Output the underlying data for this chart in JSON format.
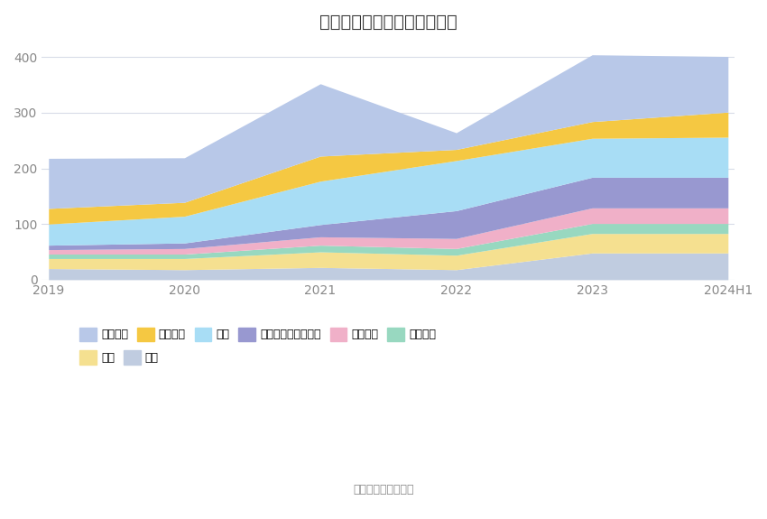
{
  "title": "历年主要资产堆积图（亿元）",
  "years": [
    "2019",
    "2020",
    "2021",
    "2022",
    "2023",
    "2024H1"
  ],
  "stack_order": [
    "其它",
    "商誉",
    "无形资产",
    "固定资产",
    "其他非流动金融资产",
    "存货",
    "应收账款",
    "货币资金"
  ],
  "legend_order": [
    "货币资金",
    "应收账款",
    "存货",
    "其他非流动金融资产",
    "固定资产",
    "无形资产",
    "商誉",
    "其它"
  ],
  "values": {
    "货币资金": [
      90,
      80,
      130,
      30,
      120,
      100
    ],
    "应收账款": [
      28,
      25,
      45,
      20,
      30,
      45
    ],
    "存货": [
      38,
      48,
      78,
      90,
      70,
      72
    ],
    "其他非流动金融资产": [
      8,
      10,
      22,
      50,
      55,
      55
    ],
    "固定资产": [
      8,
      10,
      15,
      18,
      28,
      28
    ],
    "无形资产": [
      8,
      8,
      12,
      12,
      18,
      18
    ],
    "商誉": [
      18,
      20,
      28,
      26,
      35,
      35
    ],
    "其它": [
      20,
      18,
      22,
      18,
      48,
      48
    ]
  },
  "colors": {
    "货币资金": "#b8c8e8",
    "应收账款": "#f5c842",
    "存货": "#a8ddf5",
    "其他非流动金融资产": "#9898d0",
    "固定资产": "#f0b0c8",
    "无形资产": "#98d8c0",
    "商誉": "#f5e090",
    "其它": "#c0cce0"
  },
  "source": "数据来源：恒生聚源",
  "ylim": [
    0,
    420
  ],
  "yticks": [
    0,
    100,
    200,
    300,
    400
  ],
  "background": "#ffffff",
  "grid_color": "#d8dce8",
  "title_fontsize": 14,
  "tick_fontsize": 10,
  "legend_fontsize": 9,
  "source_fontsize": 9
}
